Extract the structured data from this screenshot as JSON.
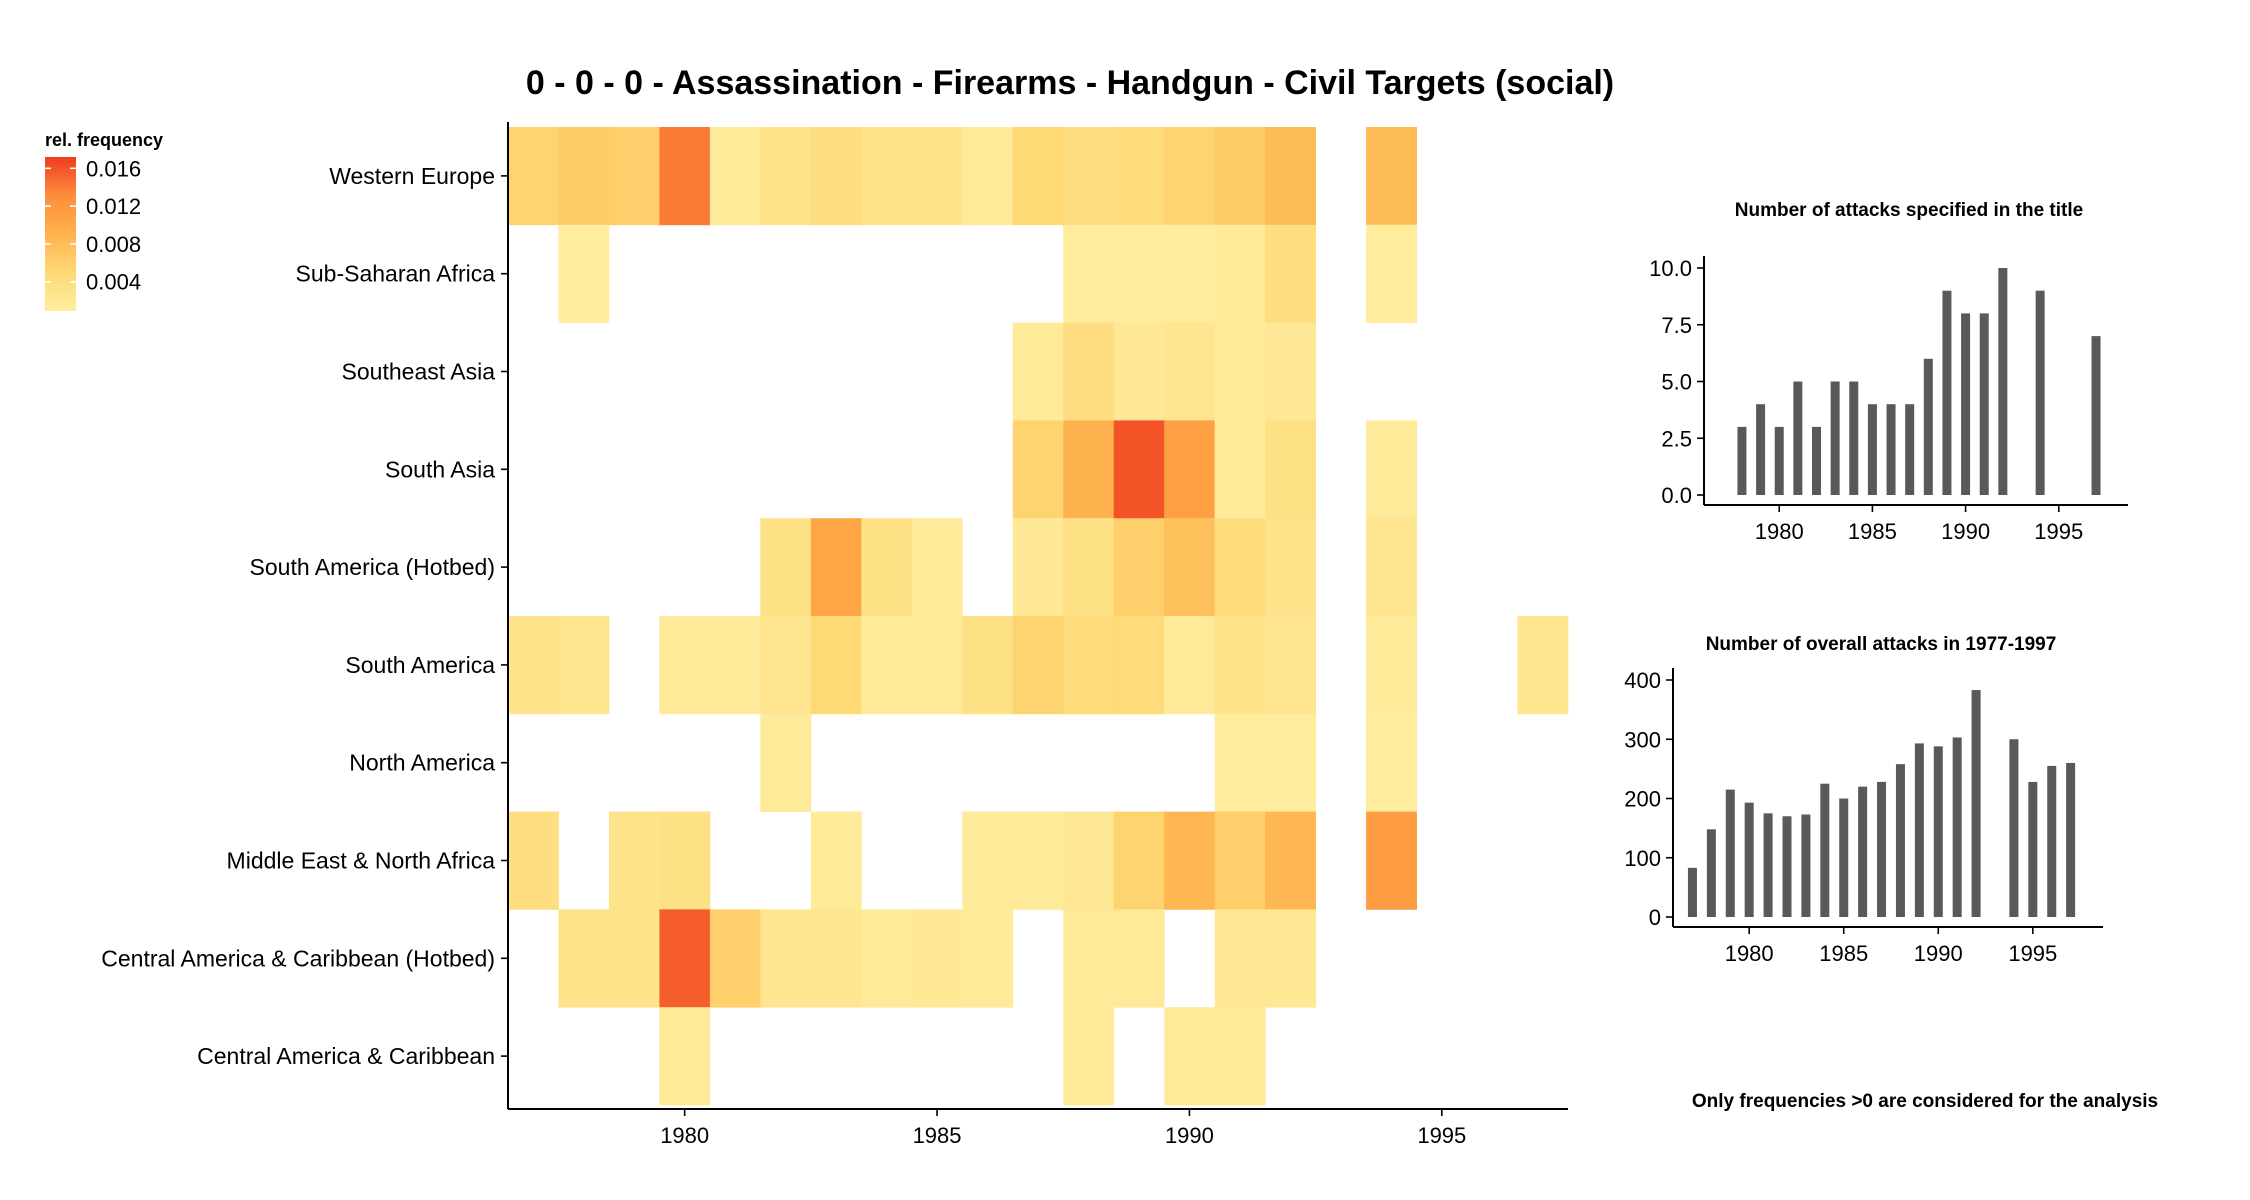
{
  "figure": {
    "title": "0 - 0 - 0 - Assassination - Firearms - Handgun - Civil Targets (social)",
    "note": "Only frequencies >0 are considered for the analysis",
    "legend": {
      "title": "rel. frequency",
      "ticks": [
        {
          "value": 0.016,
          "label": "0.016"
        },
        {
          "value": 0.012,
          "label": "0.012"
        },
        {
          "value": 0.008,
          "label": "0.008"
        },
        {
          "value": 0.004,
          "label": "0.004"
        }
      ],
      "range": [
        0.0009,
        0.0172
      ],
      "colors": [
        "#FFEDA0",
        "#FED976",
        "#FEB24C",
        "#FD8D3C",
        "#F03B20"
      ]
    },
    "bar_color": "#595959"
  },
  "chart_data": [
    {
      "type": "heatmap",
      "title": "0 - 0 - 0 - Assassination - Firearms - Handgun - Civil Targets (social)",
      "legend_title": "rel. frequency",
      "x_ticks": [
        1980,
        1985,
        1990,
        1995
      ],
      "x_range": [
        1976.5,
        1997.5
      ],
      "rows": [
        {
          "region": "Western Europe",
          "cells": [
            [
              1977,
              0.0055
            ],
            [
              1978,
              0.0065
            ],
            [
              1979,
              0.006
            ],
            [
              1980,
              0.014
            ],
            [
              1981,
              0.0015
            ],
            [
              1982,
              0.003
            ],
            [
              1983,
              0.004
            ],
            [
              1984,
              0.003
            ],
            [
              1985,
              0.003
            ],
            [
              1986,
              0.0015
            ],
            [
              1987,
              0.005
            ],
            [
              1988,
              0.004
            ],
            [
              1989,
              0.0045
            ],
            [
              1990,
              0.0055
            ],
            [
              1991,
              0.0065
            ],
            [
              1992,
              0.008
            ],
            [
              1994,
              0.008
            ]
          ]
        },
        {
          "region": "Sub-Saharan Africa",
          "cells": [
            [
              1978,
              0.0012
            ],
            [
              1988,
              0.0012
            ],
            [
              1989,
              0.0012
            ],
            [
              1990,
              0.0012
            ],
            [
              1991,
              0.0015
            ],
            [
              1992,
              0.004
            ],
            [
              1994,
              0.0012
            ]
          ]
        },
        {
          "region": "Southeast Asia",
          "cells": [
            [
              1987,
              0.0015
            ],
            [
              1988,
              0.004
            ],
            [
              1989,
              0.002
            ],
            [
              1990,
              0.0025
            ],
            [
              1991,
              0.0015
            ],
            [
              1992,
              0.002
            ]
          ]
        },
        {
          "region": "South Asia",
          "cells": [
            [
              1987,
              0.0055
            ],
            [
              1988,
              0.009
            ],
            [
              1989,
              0.016
            ],
            [
              1990,
              0.011
            ],
            [
              1991,
              0.0015
            ],
            [
              1992,
              0.0035
            ],
            [
              1994,
              0.0015
            ]
          ]
        },
        {
          "region": "South America (Hotbed)",
          "cells": [
            [
              1982,
              0.0035
            ],
            [
              1983,
              0.0105
            ],
            [
              1984,
              0.0035
            ],
            [
              1985,
              0.0015
            ],
            [
              1987,
              0.002
            ],
            [
              1988,
              0.0035
            ],
            [
              1989,
              0.006
            ],
            [
              1990,
              0.0075
            ],
            [
              1991,
              0.0045
            ],
            [
              1992,
              0.003
            ],
            [
              1994,
              0.0025
            ]
          ]
        },
        {
          "region": "South America",
          "cells": [
            [
              1977,
              0.003
            ],
            [
              1978,
              0.0025
            ],
            [
              1980,
              0.0015
            ],
            [
              1981,
              0.0015
            ],
            [
              1982,
              0.0025
            ],
            [
              1983,
              0.005
            ],
            [
              1984,
              0.0015
            ],
            [
              1985,
              0.0015
            ],
            [
              1986,
              0.0035
            ],
            [
              1987,
              0.0055
            ],
            [
              1988,
              0.0045
            ],
            [
              1989,
              0.0045
            ],
            [
              1990,
              0.0015
            ],
            [
              1991,
              0.003
            ],
            [
              1992,
              0.0025
            ],
            [
              1994,
              0.0015
            ],
            [
              1997,
              0.0025
            ]
          ]
        },
        {
          "region": "North America",
          "cells": [
            [
              1982,
              0.0015
            ],
            [
              1991,
              0.0012
            ],
            [
              1992,
              0.0012
            ],
            [
              1994,
              0.0012
            ]
          ]
        },
        {
          "region": "Middle East & North Africa",
          "cells": [
            [
              1977,
              0.004
            ],
            [
              1979,
              0.003
            ],
            [
              1980,
              0.0035
            ],
            [
              1983,
              0.0015
            ],
            [
              1986,
              0.0015
            ],
            [
              1987,
              0.0015
            ],
            [
              1988,
              0.002
            ],
            [
              1989,
              0.0055
            ],
            [
              1990,
              0.0085
            ],
            [
              1991,
              0.006
            ],
            [
              1992,
              0.0085
            ],
            [
              1994,
              0.0115
            ]
          ]
        },
        {
          "region": "Central America & Caribbean (Hotbed)",
          "cells": [
            [
              1978,
              0.003
            ],
            [
              1979,
              0.003
            ],
            [
              1980,
              0.0155
            ],
            [
              1981,
              0.006
            ],
            [
              1982,
              0.0025
            ],
            [
              1983,
              0.0025
            ],
            [
              1984,
              0.0015
            ],
            [
              1985,
              0.002
            ],
            [
              1986,
              0.0015
            ],
            [
              1988,
              0.0015
            ],
            [
              1989,
              0.0015
            ],
            [
              1991,
              0.002
            ],
            [
              1992,
              0.002
            ]
          ]
        },
        {
          "region": "Central America & Caribbean",
          "cells": [
            [
              1980,
              0.0015
            ],
            [
              1988,
              0.0015
            ],
            [
              1990,
              0.0015
            ],
            [
              1991,
              0.0015
            ]
          ]
        }
      ]
    },
    {
      "type": "bar",
      "title": "Number of attacks specified in the title",
      "x": [
        1978,
        1979,
        1980,
        1981,
        1982,
        1983,
        1984,
        1985,
        1986,
        1987,
        1988,
        1989,
        1990,
        1991,
        1992,
        1994,
        1997
      ],
      "values": [
        3,
        4,
        3,
        5,
        3,
        5,
        5,
        4,
        4,
        4,
        6,
        9,
        8,
        8,
        10,
        9,
        7
      ],
      "x_ticks": [
        1980,
        1985,
        1990,
        1995
      ],
      "y_ticks": [
        "0.0",
        "2.5",
        "5.0",
        "7.5",
        "10.0"
      ],
      "ylim": [
        0,
        10
      ],
      "xlim": [
        1976.5,
        1998.5
      ]
    },
    {
      "type": "bar",
      "title": "Number of overall attacks in 1977-1997",
      "x": [
        1977,
        1978,
        1979,
        1980,
        1981,
        1982,
        1983,
        1984,
        1985,
        1986,
        1987,
        1988,
        1989,
        1990,
        1991,
        1992,
        1994,
        1995,
        1996,
        1997
      ],
      "values": [
        83,
        148,
        215,
        193,
        175,
        170,
        173,
        225,
        200,
        220,
        228,
        258,
        293,
        288,
        303,
        383,
        300,
        228,
        255,
        260
      ],
      "x_ticks": [
        1980,
        1985,
        1990,
        1995
      ],
      "y_ticks": [
        "0",
        "100",
        "200",
        "300",
        "400"
      ],
      "ylim": [
        0,
        400
      ],
      "xlim": [
        1976.5,
        1998.5
      ]
    }
  ]
}
